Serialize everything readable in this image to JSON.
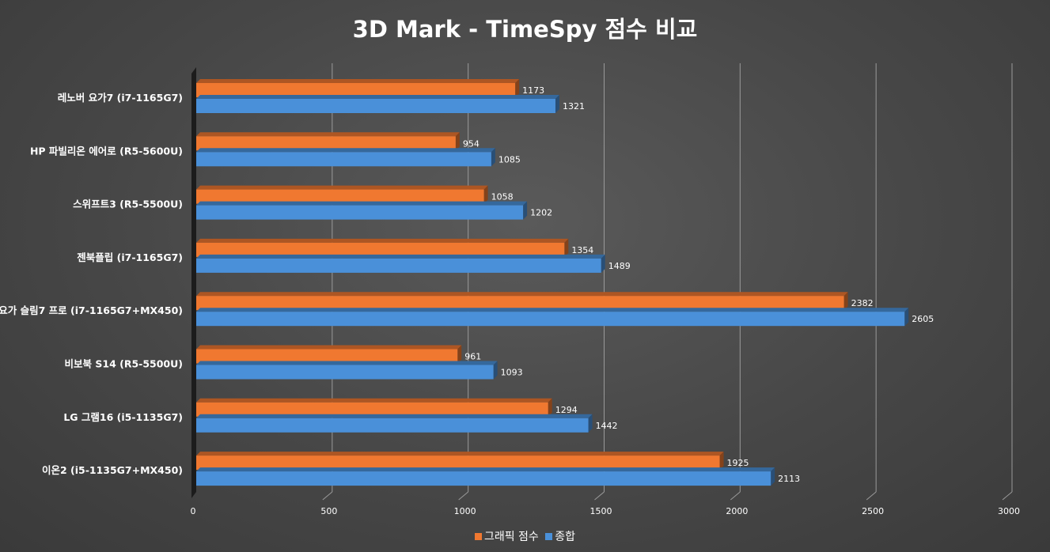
{
  "chart_data": {
    "type": "bar",
    "orientation": "horizontal",
    "title": "3D Mark - TimeSpy 점수 비교",
    "categories": [
      "레노버 요가7 (i7-1165G7)",
      "HP 파빌리온 에어로 (R5-5600U)",
      "스위프트3 (R5-5500U)",
      "젠북플립 (i7-1165G7)",
      "요가 슬림7 프로 (i7-1165G7+MX450)",
      "비보북 S14 (R5-5500U)",
      "LG 그램16 (i5-1135G7)",
      "이온2 (i5-1135G7+MX450)"
    ],
    "series": [
      {
        "name": "그래픽 점수",
        "color": "#f07830",
        "values": [
          1173,
          954,
          1058,
          1354,
          2382,
          961,
          1294,
          1925
        ]
      },
      {
        "name": "종합",
        "color": "#4a90d9",
        "values": [
          1321,
          1085,
          1202,
          1489,
          2605,
          1093,
          1442,
          2113
        ]
      }
    ],
    "xlim": [
      0,
      3000
    ],
    "xticks": [
      0,
      500,
      1000,
      1500,
      2000,
      2500,
      3000
    ],
    "xlabel": "",
    "ylabel": "",
    "grid": true,
    "legend_position": "bottom"
  }
}
